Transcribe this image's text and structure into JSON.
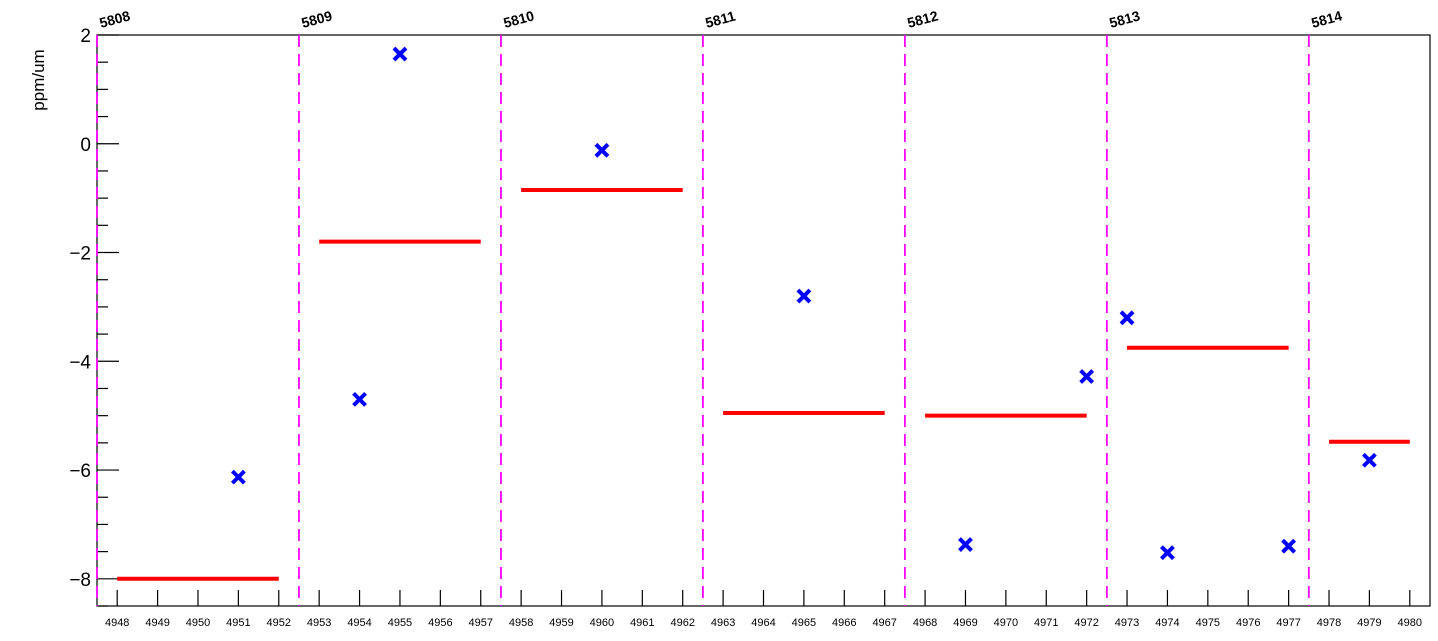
{
  "chart_data": {
    "type": "scatter",
    "title": "",
    "xlabel": "",
    "ylabel": "ppm/um",
    "xlim": [
      4947.5,
      4980.5
    ],
    "ylim": [
      -8.5,
      2.0
    ],
    "x_ticks": [
      4948,
      4949,
      4950,
      4951,
      4952,
      4953,
      4954,
      4955,
      4956,
      4957,
      4958,
      4959,
      4960,
      4961,
      4962,
      4963,
      4964,
      4965,
      4966,
      4967,
      4968,
      4969,
      4970,
      4971,
      4972,
      4973,
      4974,
      4975,
      4976,
      4977,
      4978,
      4979,
      4980
    ],
    "y_ticks": [
      -8,
      -6,
      -4,
      -2,
      0,
      2
    ],
    "y_tick_labels": [
      "−8",
      "−6",
      "−4",
      "−2",
      "0",
      "2"
    ],
    "points": {
      "name": "",
      "color": "#0000ff",
      "marker": "x",
      "x": [
        4951,
        4954,
        4955,
        4960,
        4965,
        4969,
        4972,
        4973,
        4974,
        4977,
        4979
      ],
      "y": [
        -6.13,
        -4.7,
        1.65,
        -0.12,
        -2.8,
        -7.37,
        -4.28,
        -3.2,
        -7.52,
        -7.4,
        -5.82
      ]
    },
    "averages": {
      "color": "#ff0000",
      "segments": [
        {
          "x0": 4948,
          "x1": 4952,
          "y": -8.0
        },
        {
          "x0": 4953,
          "x1": 4957,
          "y": -1.8
        },
        {
          "x0": 4958,
          "x1": 4962,
          "y": -0.85
        },
        {
          "x0": 4963,
          "x1": 4967,
          "y": -4.95
        },
        {
          "x0": 4968,
          "x1": 4972,
          "y": -5.0
        },
        {
          "x0": 4973,
          "x1": 4977,
          "y": -3.75
        },
        {
          "x0": 4978,
          "x1": 4980,
          "y": -5.48
        }
      ]
    },
    "run_boundaries": {
      "color": "#ff00ff",
      "style": "dashed",
      "x": [
        4947.5,
        4952.5,
        4957.5,
        4962.5,
        4967.5,
        4972.5,
        4977.5
      ]
    },
    "run_labels": [
      "5808",
      "5809",
      "5810",
      "5811",
      "5812",
      "5813",
      "5814"
    ],
    "grid": false,
    "legend": "none"
  }
}
